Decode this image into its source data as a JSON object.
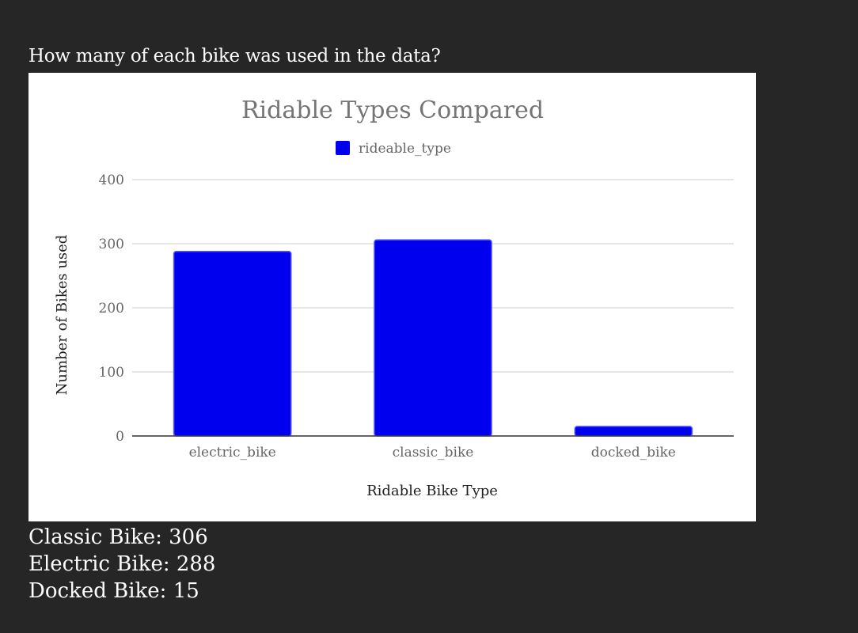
{
  "question": "How many of each bike was used in the data?",
  "chart_data": {
    "type": "bar",
    "title": "Ridable Types Compared",
    "categories": [
      "electric_bike",
      "classic_bike",
      "docked_bike"
    ],
    "series": [
      {
        "name": "rideable_type",
        "values": [
          288,
          306,
          15
        ]
      }
    ],
    "xlabel": "Ridable Bike Type",
    "ylabel": "Number of Bikes used",
    "ylim": [
      0,
      400
    ],
    "yticks": [
      0,
      100,
      200,
      300,
      400
    ],
    "grid": true,
    "legend": "top-center",
    "color": "#0000ee"
  },
  "summary": [
    "Classic Bike: 306",
    "Electric Bike: 288",
    "Docked Bike: 15"
  ]
}
